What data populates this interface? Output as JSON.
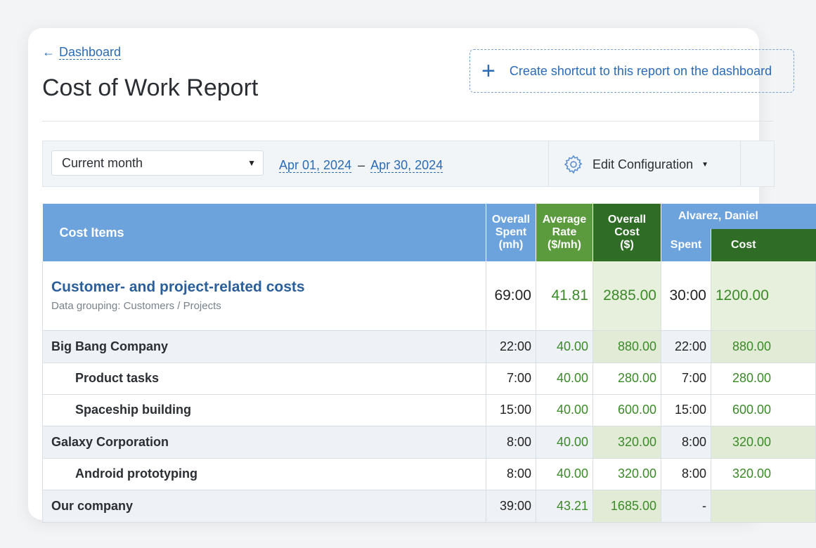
{
  "nav": {
    "back_label": "Dashboard"
  },
  "page": {
    "title": "Cost of Work Report"
  },
  "shortcut": {
    "label": "Create shortcut to this report on the dashboard"
  },
  "toolbar": {
    "period_value": "Current month",
    "date_from": "Apr 01, 2024",
    "date_separator": "–",
    "date_to": "Apr 30, 2024",
    "edit_config_label": "Edit Configuration"
  },
  "table": {
    "headers": {
      "cost_items": "Cost Items",
      "overall_spent": [
        "Overall",
        "Spent",
        "(mh)"
      ],
      "average_rate": [
        "Average",
        "Rate",
        "($/mh)"
      ],
      "overall_cost": [
        "Overall",
        "Cost",
        "($)"
      ],
      "person": "Alvarez, Daniel",
      "person_spent": "Spent",
      "person_cost": "Cost"
    },
    "summary": {
      "title": "Customer- and project-related costs",
      "subtitle": "Data grouping: Customers / Projects",
      "spent": "69:00",
      "rate": "41.81",
      "cost": "2885.00",
      "p_spent": "30:00",
      "p_cost": "1200.00"
    },
    "rows": [
      {
        "type": "group",
        "name": "Big Bang Company",
        "spent": "22:00",
        "rate": "40.00",
        "cost": "880.00",
        "p_spent": "22:00",
        "p_cost": "880.00"
      },
      {
        "type": "item",
        "name": "Product tasks",
        "spent": "7:00",
        "rate": "40.00",
        "cost": "280.00",
        "p_spent": "7:00",
        "p_cost": "280.00"
      },
      {
        "type": "item",
        "name": "Spaceship building",
        "spent": "15:00",
        "rate": "40.00",
        "cost": "600.00",
        "p_spent": "15:00",
        "p_cost": "600.00"
      },
      {
        "type": "group",
        "name": "Galaxy Corporation",
        "spent": "8:00",
        "rate": "40.00",
        "cost": "320.00",
        "p_spent": "8:00",
        "p_cost": "320.00"
      },
      {
        "type": "item",
        "name": "Android prototyping",
        "spent": "8:00",
        "rate": "40.00",
        "cost": "320.00",
        "p_spent": "8:00",
        "p_cost": "320.00"
      },
      {
        "type": "group",
        "name": "Our company",
        "spent": "39:00",
        "rate": "43.21",
        "cost": "1685.00",
        "p_spent": "-",
        "p_cost": ""
      }
    ]
  },
  "icons": {
    "back": "arrow-left-icon",
    "plus": "plus-icon",
    "gear": "gear-icon",
    "caret": "caret-down-icon"
  },
  "colors": {
    "header_blue": "#6da3dd",
    "header_green": "#5b9a3d",
    "header_dark_green": "#2f6c25",
    "link_blue": "#2a6bb8",
    "value_green": "#3b8a28"
  }
}
